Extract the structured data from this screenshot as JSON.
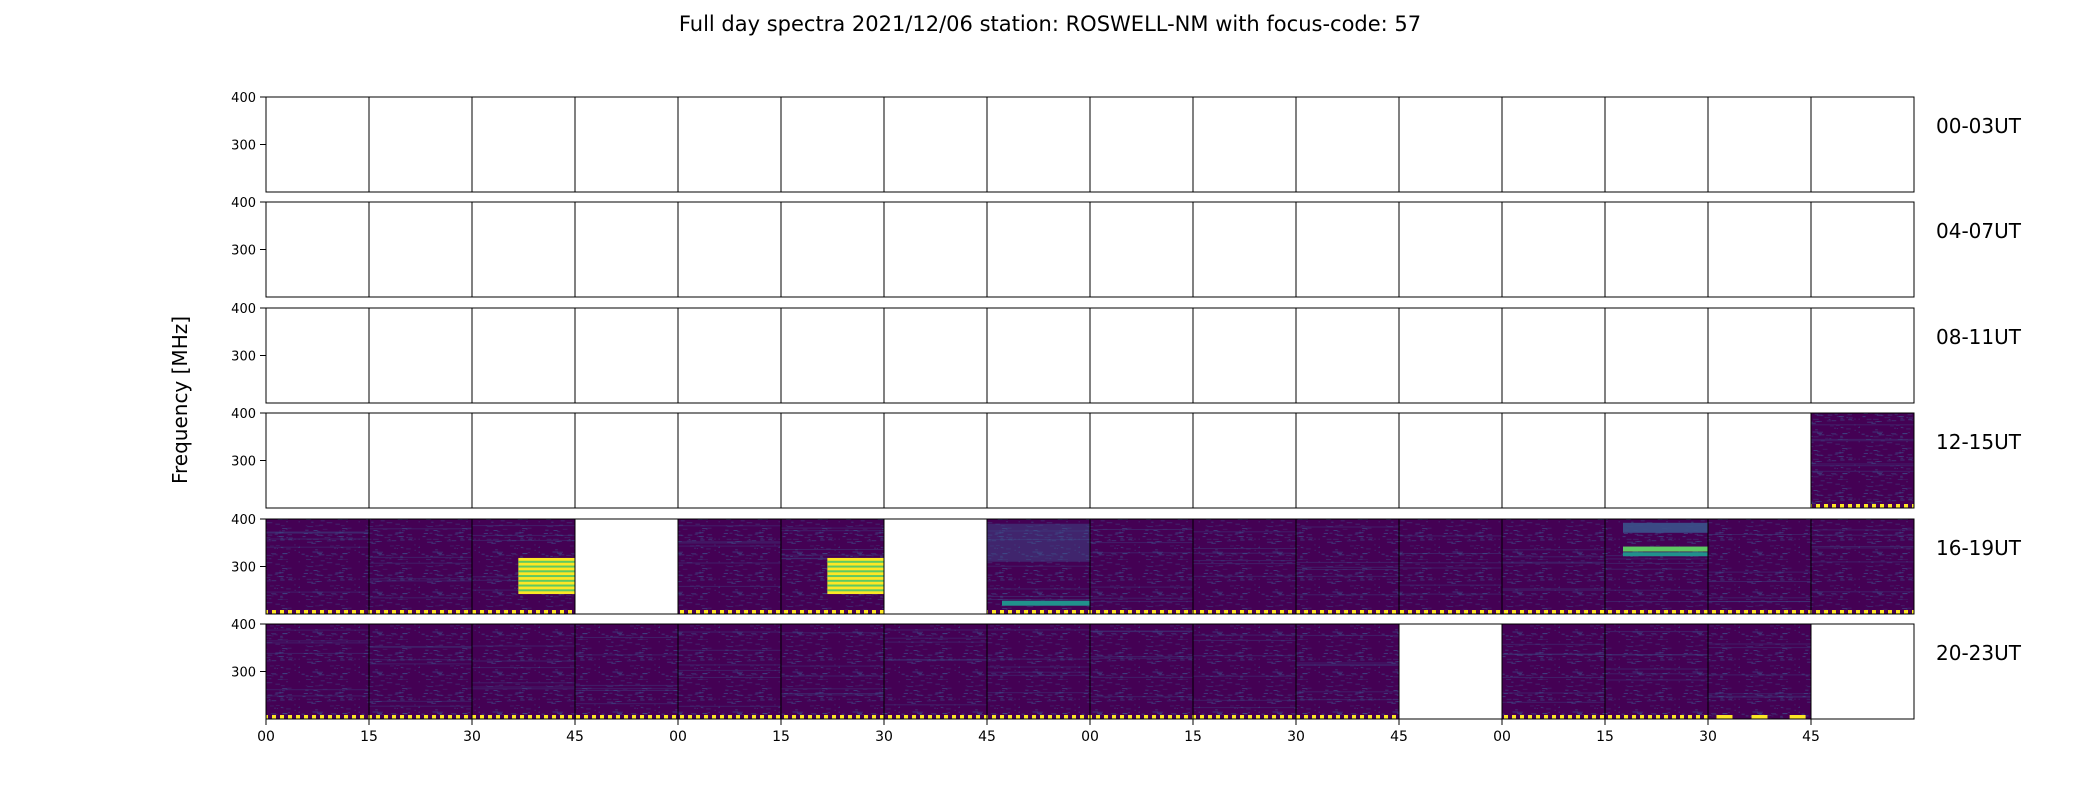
{
  "chart_data": {
    "type": "heatmap",
    "title": "Full day spectra 2021/12/06 station: ROSWELL-NM with focus-code: 57",
    "ylabel": "Frequency [MHz]",
    "y_ticks": [
      "400",
      "300"
    ],
    "ylim": [
      200,
      400
    ],
    "x_ticks": [
      "00",
      "15",
      "30",
      "45",
      "00",
      "15",
      "30",
      "45",
      "00",
      "15",
      "30",
      "45",
      "00",
      "15",
      "30",
      "45"
    ],
    "colormap": [
      "#440154",
      "#3b528b",
      "#21918c",
      "#5ec962",
      "#fde725"
    ],
    "legend": "none",
    "grid": false,
    "panels_per_row": 16,
    "rows": [
      {
        "label": "00-03UT",
        "panels": [
          "none",
          "none",
          "none",
          "none",
          "none",
          "none",
          "none",
          "none",
          "none",
          "none",
          "none",
          "none",
          "none",
          "none",
          "none",
          "none"
        ]
      },
      {
        "label": "04-07UT",
        "panels": [
          "none",
          "none",
          "none",
          "none",
          "none",
          "none",
          "none",
          "none",
          "none",
          "none",
          "none",
          "none",
          "none",
          "none",
          "none",
          "none"
        ]
      },
      {
        "label": "08-11UT",
        "panels": [
          "none",
          "none",
          "none",
          "none",
          "none",
          "none",
          "none",
          "none",
          "none",
          "none",
          "none",
          "none",
          "none",
          "none",
          "none",
          "none"
        ]
      },
      {
        "label": "12-15UT",
        "panels": [
          "none",
          "none",
          "none",
          "none",
          "none",
          "none",
          "none",
          "none",
          "none",
          "none",
          "none",
          "none",
          "none",
          "none",
          "none",
          "data"
        ]
      },
      {
        "label": "16-19UT",
        "panels": [
          "data",
          "data",
          "data-burst-late",
          "none",
          "data",
          "data-burst-late",
          "none",
          "data-band-low",
          "data",
          "data",
          "data",
          "data",
          "data",
          "data-band-mid",
          "data",
          "data"
        ]
      },
      {
        "label": "20-23UT",
        "panels": [
          "data",
          "data",
          "data",
          "data",
          "data",
          "data",
          "data",
          "data",
          "data",
          "data",
          "data",
          "none",
          "data",
          "data",
          "data-gaps",
          "none"
        ]
      }
    ]
  }
}
